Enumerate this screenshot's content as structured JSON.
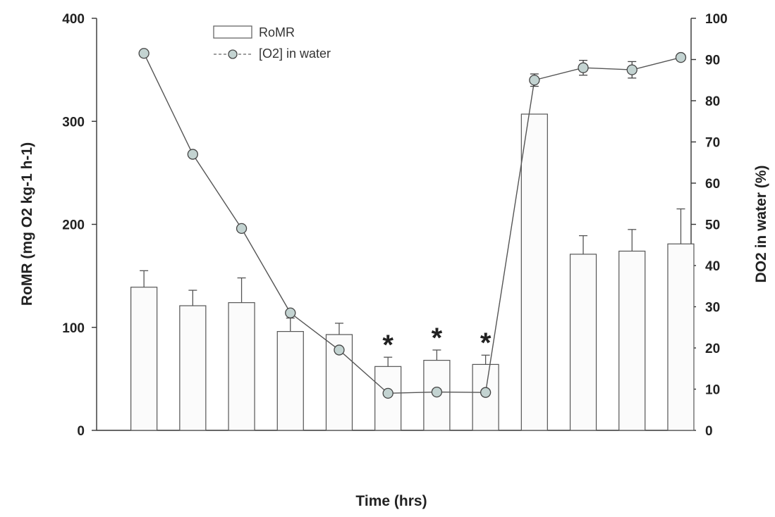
{
  "chart_data": {
    "type": "bar",
    "xlabel": "Time (hrs)",
    "ylabel": "RoMR (mg O2 kg-1 h-1)",
    "y2label": "DO2 in water (%)",
    "ylim": [
      0,
      400
    ],
    "y2lim": [
      0,
      100
    ],
    "yticks": [
      "0",
      "100",
      "200",
      "300",
      "400"
    ],
    "y2ticks": [
      "0",
      "10",
      "20",
      "30",
      "40",
      "50",
      "60",
      "70",
      "80",
      "90",
      "100"
    ],
    "series": [
      {
        "name": "RoMR",
        "kind": "bar",
        "axis": "left",
        "values": [
          139,
          121,
          124,
          96,
          93,
          62,
          68,
          64,
          307,
          171,
          174,
          181
        ],
        "errors": [
          16,
          15,
          24,
          13,
          11,
          9,
          10,
          9,
          0,
          18,
          21,
          34
        ]
      },
      {
        "name": "[O2] in water",
        "kind": "line",
        "axis": "right",
        "values": [
          91.5,
          67,
          49,
          28.5,
          19.5,
          9,
          9.3,
          9.2,
          85,
          88,
          87.5,
          90.5
        ],
        "errors": [
          0,
          0,
          0,
          0,
          0,
          0,
          0,
          0,
          1.5,
          1.8,
          2.0,
          0.7
        ]
      }
    ],
    "significance_marker": "*",
    "significant_indices": [
      5,
      6,
      7
    ],
    "legend_position": "top-left",
    "grid": false,
    "colors": {
      "bar_fill": "#fbfbfb",
      "bar_stroke": "#555555",
      "line": "#555555",
      "marker_fill": "#c3d3d1",
      "marker_stroke": "#444444",
      "axis": "#333333"
    }
  },
  "legend": {
    "bar_label": "RoMR",
    "line_label": "[O2] in water"
  }
}
